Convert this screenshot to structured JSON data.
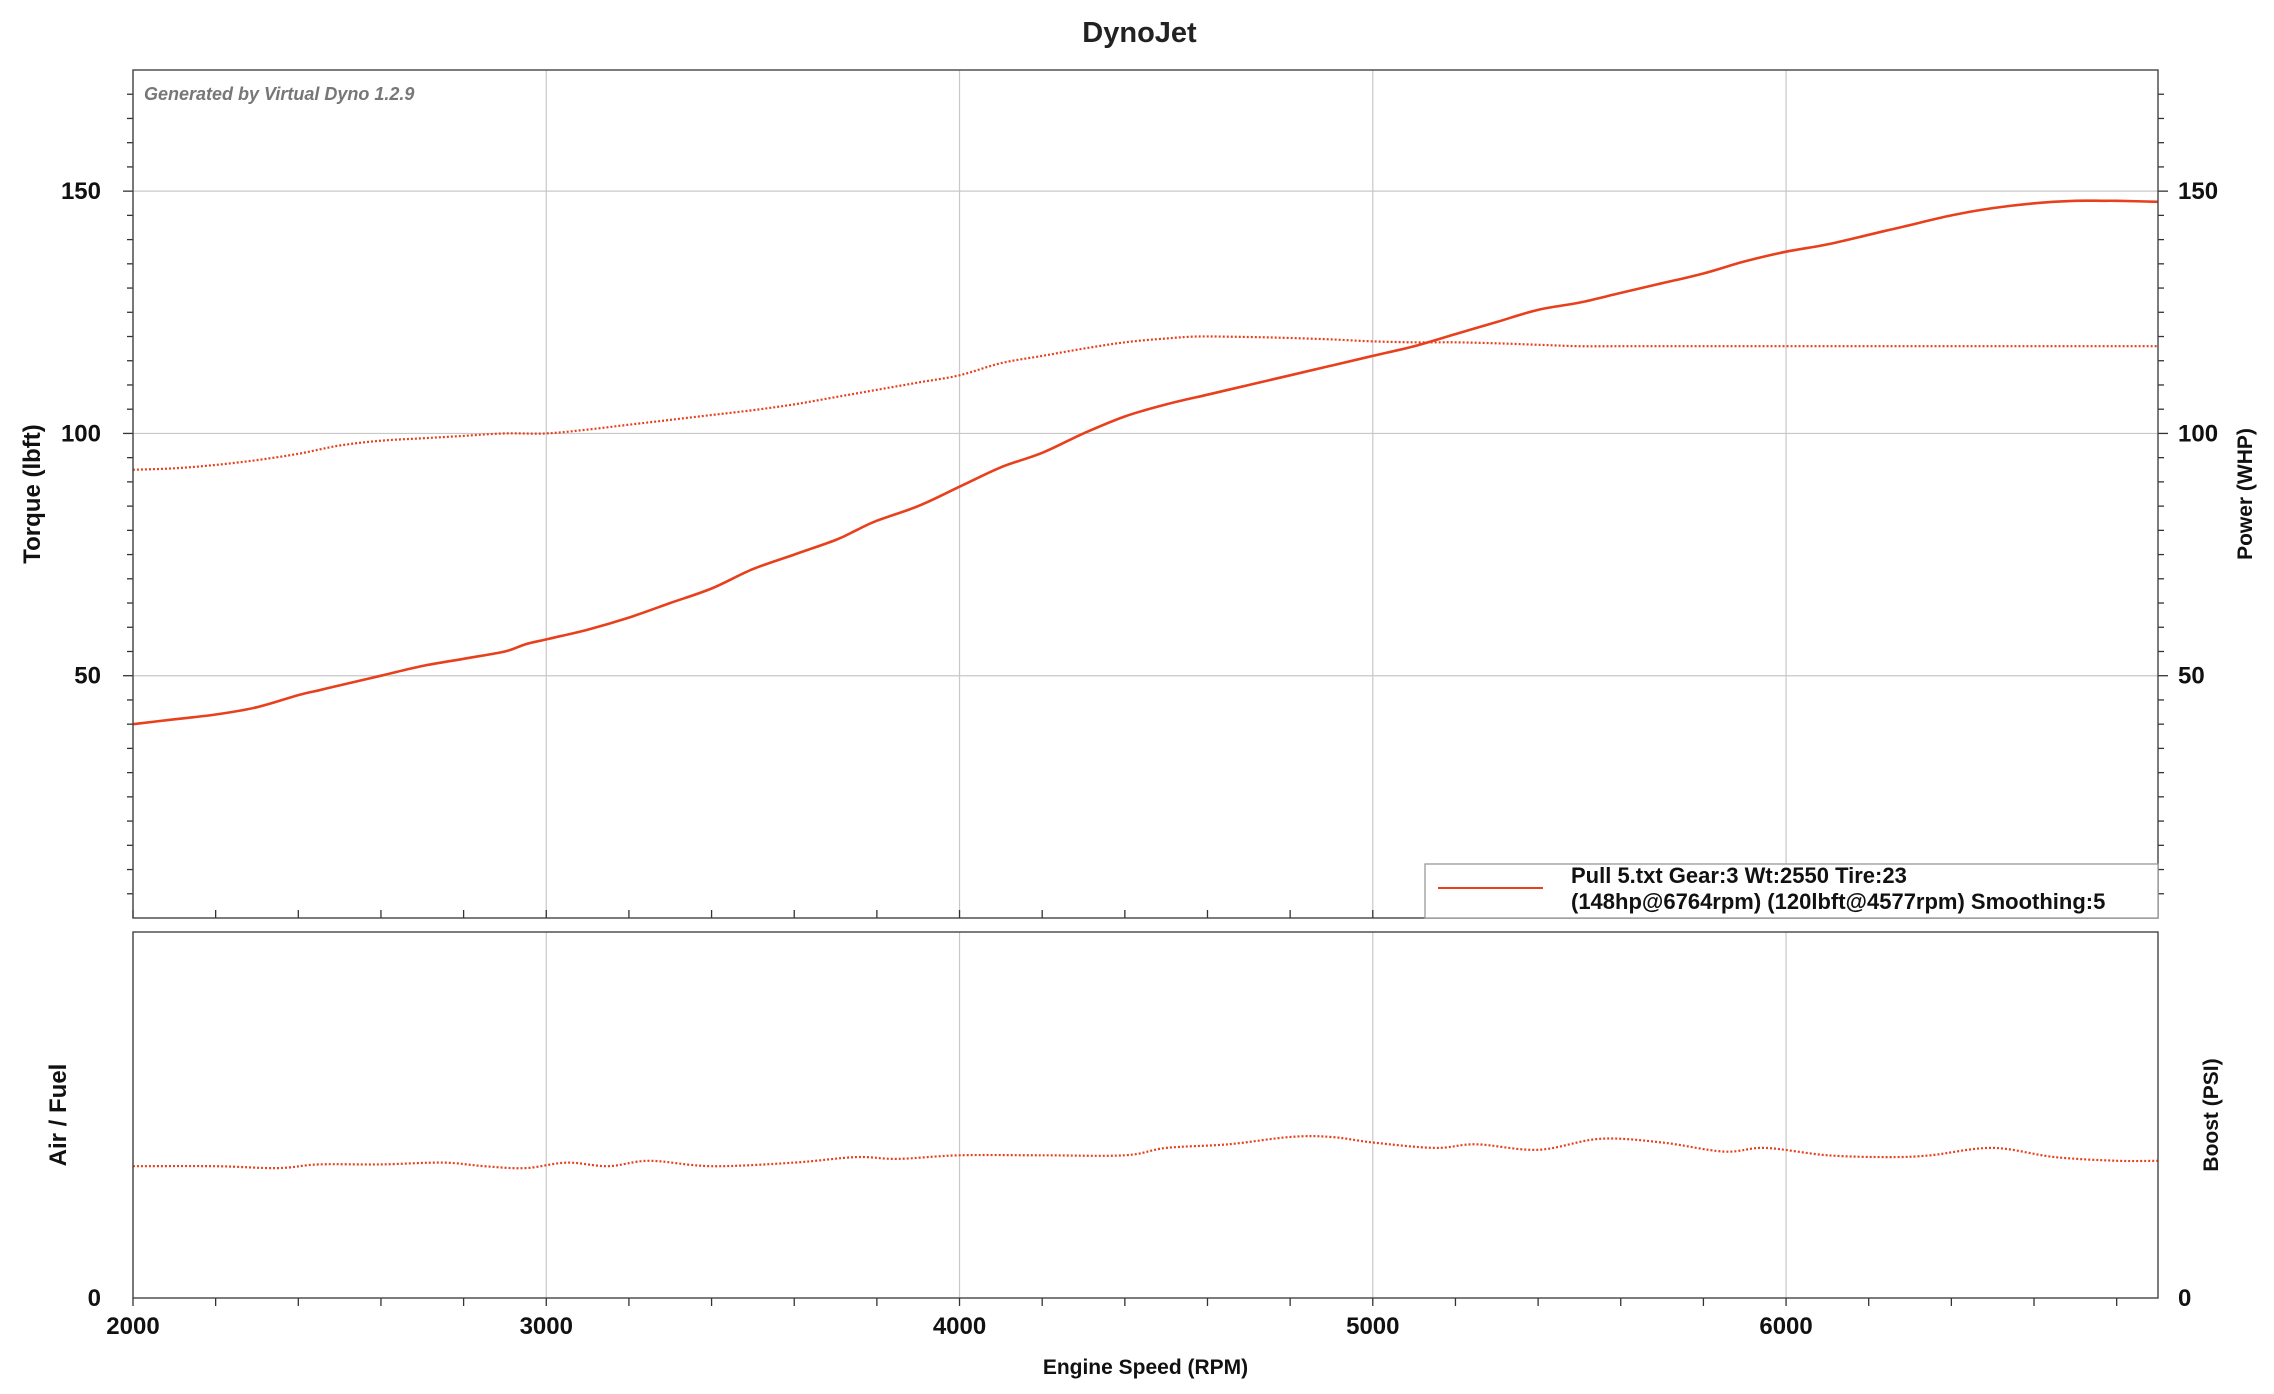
{
  "chart_data": [
    {
      "type": "line",
      "title": "DynoJet",
      "watermark": "Generated by Virtual Dyno 1.2.9",
      "xlabel": "Engine Speed (RPM)",
      "ylabel_left": "Torque (lbft)",
      "ylabel_right": "Power (WHP)",
      "xlim": [
        2000,
        6900
      ],
      "ylim": [
        0,
        175
      ],
      "x_ticks": [
        "2000",
        "3000",
        "4000",
        "5000",
        "6000"
      ],
      "y_ticks_left": [
        "50",
        "100",
        "150"
      ],
      "y_ticks_right": [
        "50",
        "100",
        "150"
      ],
      "grid": true,
      "legend_position": "bottom-right",
      "legend": {
        "line1": "Pull 5.txt Gear:3 Wt:2550 Tire:23",
        "line2": "(148hp@6764rpm) (120lbft@4577rpm) Smoothing:5",
        "color": "#e8401c"
      },
      "series": [
        {
          "name": "Power (WHP)",
          "style": "solid",
          "color": "#e8401c",
          "x": [
            2000,
            2100,
            2200,
            2300,
            2400,
            2450,
            2500,
            2600,
            2700,
            2800,
            2900,
            2950,
            3000,
            3100,
            3200,
            3300,
            3400,
            3500,
            3600,
            3700,
            3750,
            3800,
            3900,
            4000,
            4100,
            4200,
            4300,
            4400,
            4500,
            4600,
            4700,
            4800,
            4900,
            5000,
            5100,
            5200,
            5300,
            5400,
            5500,
            5600,
            5700,
            5800,
            5900,
            6000,
            6100,
            6200,
            6250,
            6300,
            6400,
            6500,
            6600,
            6700,
            6764,
            6800,
            6900
          ],
          "values": [
            40,
            41,
            42,
            43.5,
            46,
            47,
            48,
            50,
            52,
            53.5,
            55,
            56.5,
            57.5,
            59.5,
            62,
            65,
            68,
            72,
            75,
            78,
            80,
            82,
            85,
            89,
            93,
            96,
            100,
            103.5,
            106,
            108,
            110,
            112,
            114,
            116,
            118,
            120.5,
            123,
            125.5,
            127,
            129,
            131,
            133,
            135.5,
            137.5,
            139,
            141,
            142,
            143,
            145,
            146.5,
            147.5,
            148,
            148,
            148,
            147.8
          ]
        },
        {
          "name": "Torque (lbft)",
          "style": "dotted",
          "color": "#e8401c",
          "x": [
            2000,
            2100,
            2200,
            2300,
            2400,
            2500,
            2600,
            2700,
            2800,
            2900,
            3000,
            3100,
            3200,
            3300,
            3400,
            3500,
            3600,
            3700,
            3800,
            3900,
            4000,
            4100,
            4200,
            4300,
            4400,
            4500,
            4577,
            4700,
            4800,
            4900,
            5000,
            5100,
            5200,
            5300,
            5400,
            5500,
            5600,
            5800,
            6000,
            6200,
            6400,
            6600,
            6900
          ],
          "values": [
            92.5,
            92.8,
            93.5,
            94.5,
            95.8,
            97.5,
            98.5,
            99,
            99.5,
            100,
            100,
            100.8,
            101.8,
            102.8,
            103.8,
            104.8,
            106,
            107.5,
            109,
            110.5,
            112,
            114.5,
            116,
            117.5,
            118.8,
            119.6,
            120,
            119.9,
            119.7,
            119.4,
            119,
            118.8,
            118.8,
            118.6,
            118.3,
            118,
            118,
            118,
            118,
            118,
            118,
            118,
            118
          ]
        }
      ]
    },
    {
      "type": "line",
      "ylabel_left": "Air / Fuel",
      "ylabel_right": "Boost (PSI)",
      "y_ticks_left": [
        "0"
      ],
      "y_ticks_right": [
        "0"
      ],
      "ylim": [
        0,
        10
      ],
      "grid": true,
      "series": [
        {
          "style": "dotted",
          "color": "#e8401c",
          "x": [
            2000,
            2200,
            2350,
            2450,
            2600,
            2750,
            2850,
            2950,
            3050,
            3150,
            3250,
            3400,
            3600,
            3750,
            3850,
            4000,
            4200,
            4400,
            4500,
            4650,
            4800,
            4900,
            5000,
            5150,
            5250,
            5400,
            5550,
            5700,
            5850,
            5950,
            6100,
            6250,
            6350,
            6500,
            6650,
            6800,
            6900
          ],
          "values": [
            3.6,
            3.6,
            3.55,
            3.65,
            3.65,
            3.7,
            3.6,
            3.55,
            3.7,
            3.6,
            3.75,
            3.6,
            3.7,
            3.85,
            3.8,
            3.9,
            3.9,
            3.9,
            4.1,
            4.2,
            4.4,
            4.4,
            4.25,
            4.1,
            4.2,
            4.05,
            4.35,
            4.25,
            4.0,
            4.1,
            3.9,
            3.85,
            3.9,
            4.1,
            3.85,
            3.75,
            3.75
          ]
        }
      ]
    }
  ]
}
